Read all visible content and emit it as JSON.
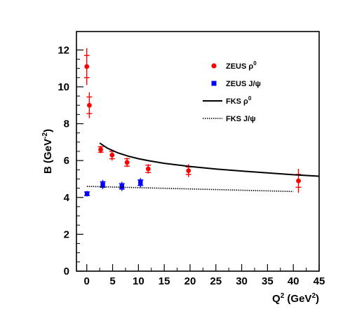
{
  "chart_data": {
    "type": "scatter",
    "xlabel": {
      "base": "Q",
      "sup": "2",
      "rest": " (GeV",
      "sup2": "2",
      "end": ")"
    },
    "ylabel": {
      "base": "B (GeV",
      "sup": "-2",
      "end": ")"
    },
    "xlim": [
      -2,
      45
    ],
    "ylim": [
      0,
      13
    ],
    "xticks": [
      0,
      5,
      10,
      15,
      20,
      25,
      30,
      35,
      40,
      45
    ],
    "yticks": [
      0,
      2,
      4,
      6,
      8,
      10,
      12
    ],
    "grid": false,
    "legend_position": "top-right",
    "series": [
      {
        "name": "ZEUS ρ0",
        "kind": "points",
        "marker": "circle",
        "color": "#ff0000",
        "x": [
          0.0,
          0.5,
          2.7,
          4.9,
          7.8,
          11.9,
          19.7,
          41.0
        ],
        "y": [
          11.1,
          9.0,
          6.6,
          6.3,
          5.9,
          5.55,
          5.45,
          4.9
        ],
        "err_stat": [
          0.6,
          0.45,
          0.15,
          0.2,
          0.2,
          0.2,
          0.2,
          0.35
        ],
        "err_tot": [
          1.0,
          0.7,
          0.2,
          0.3,
          0.25,
          0.25,
          0.35,
          0.65
        ]
      },
      {
        "name": "ZEUS J/ψ",
        "kind": "points",
        "marker": "square",
        "color": "#0000ff",
        "x": [
          0.05,
          3.1,
          6.8,
          10.4
        ],
        "y": [
          4.2,
          4.7,
          4.6,
          4.8
        ],
        "err_stat": [
          0.1,
          0.15,
          0.15,
          0.15
        ],
        "err_tot": [
          0.15,
          0.25,
          0.25,
          0.25
        ]
      },
      {
        "name": "FKS ρ0",
        "kind": "line",
        "style": "solid",
        "color": "#000000",
        "x": [
          2.5,
          4,
          6,
          8,
          10,
          12,
          15,
          20,
          25,
          30,
          35,
          40,
          45
        ],
        "y": [
          6.95,
          6.67,
          6.42,
          6.24,
          6.1,
          5.99,
          5.85,
          5.68,
          5.54,
          5.43,
          5.33,
          5.23,
          5.15
        ]
      },
      {
        "name": "FKS J/ψ",
        "kind": "line",
        "style": "dotted",
        "color": "#000000",
        "x": [
          0,
          10,
          20,
          30,
          40
        ],
        "y": [
          4.6,
          4.53,
          4.46,
          4.39,
          4.32
        ]
      }
    ],
    "legend": [
      {
        "label": "ZEUS ρ",
        "sup": "0",
        "symbol": "circle",
        "color": "#ff0000"
      },
      {
        "label": "ZEUS J/ψ",
        "sup": "",
        "symbol": "square",
        "color": "#0000ff"
      },
      {
        "label": "FKS ρ",
        "sup": "0",
        "symbol": "solid-line",
        "color": "#000000"
      },
      {
        "label": "FKS J/ψ",
        "sup": "",
        "symbol": "dotted-line",
        "color": "#000000"
      }
    ]
  }
}
